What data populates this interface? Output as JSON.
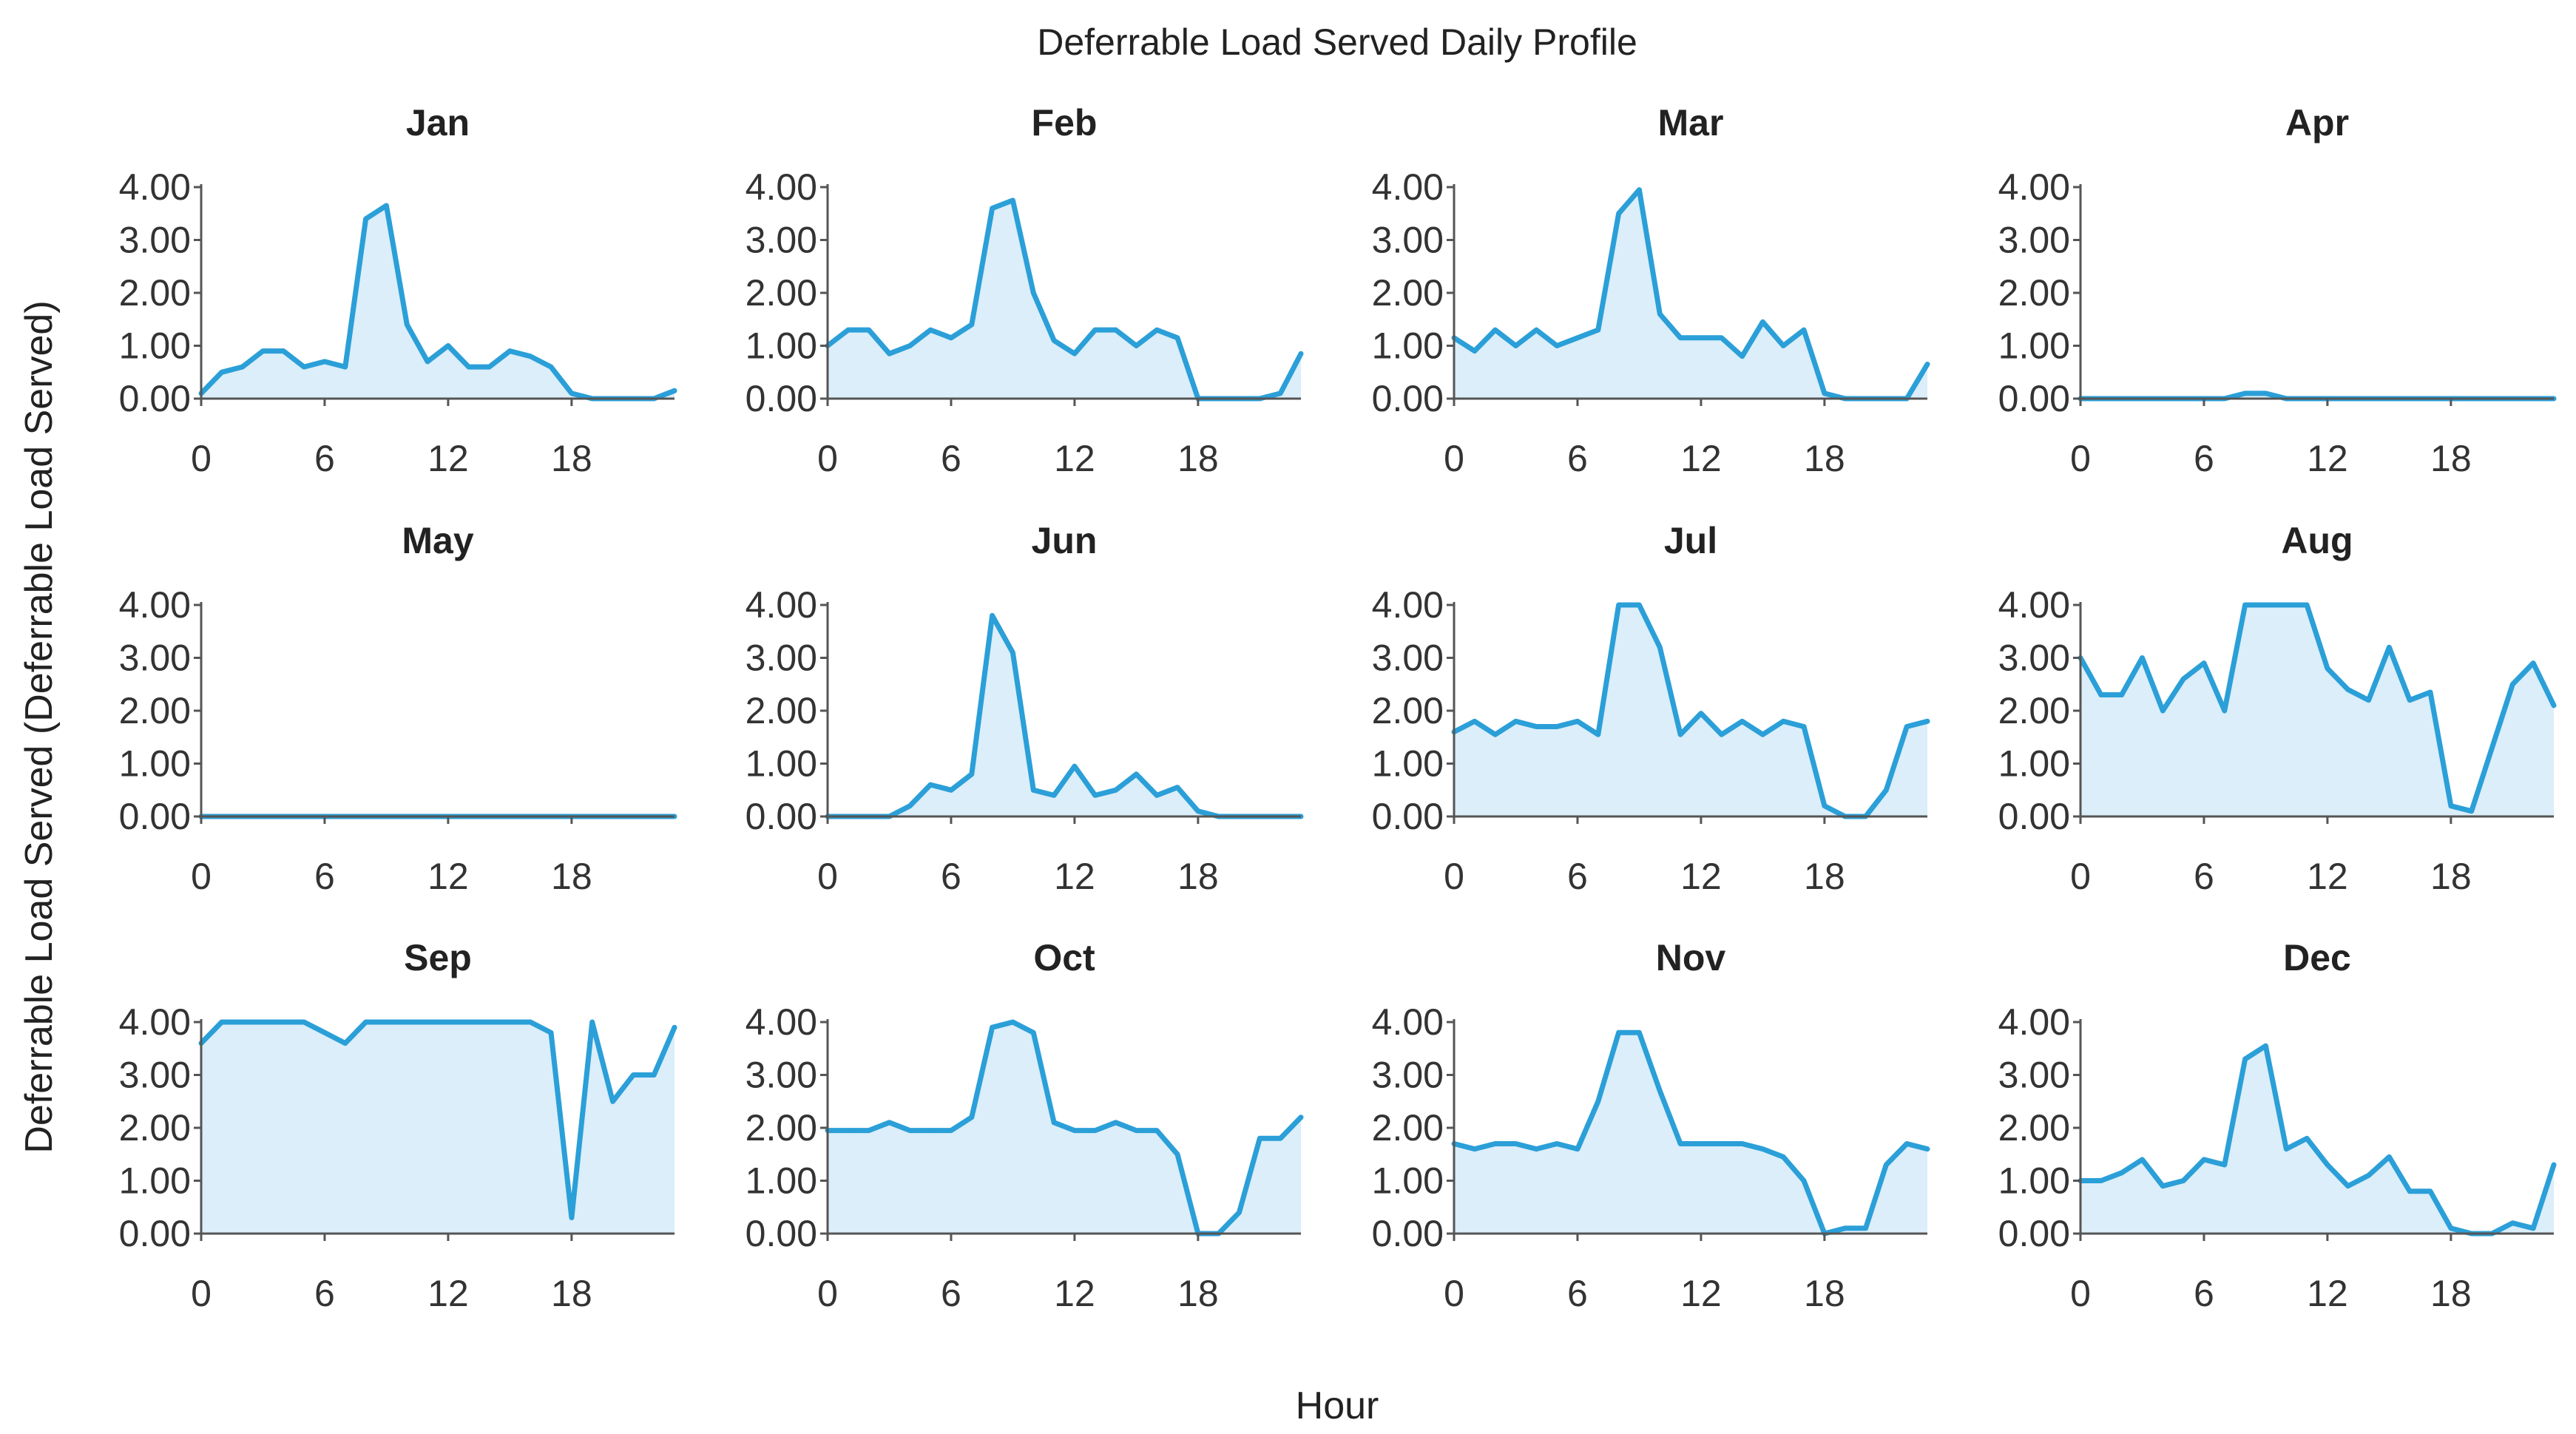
{
  "colors": {
    "line": "#2b9fd8",
    "fill": "#dbeef9"
  },
  "chart_data": {
    "type": "area",
    "title": "Deferrable Load Served Daily Profile",
    "xlabel": "Hour",
    "ylabel": "Deferrable Load Served (Deferrable Load Served)",
    "x": [
      0,
      1,
      2,
      3,
      4,
      5,
      6,
      7,
      8,
      9,
      10,
      11,
      12,
      13,
      14,
      15,
      16,
      17,
      18,
      19,
      20,
      21,
      22,
      23
    ],
    "xlim": [
      0,
      23
    ],
    "xticks": [
      0,
      6,
      12,
      18
    ],
    "ylim": [
      0,
      4
    ],
    "yticks": [
      0,
      1,
      2,
      3,
      4
    ],
    "ytick_labels": [
      "0.00",
      "1.00",
      "2.00",
      "3.00",
      "4.00"
    ],
    "grid": false,
    "panels": [
      {
        "name": "Jan",
        "values": [
          0.1,
          0.5,
          0.6,
          0.9,
          0.9,
          0.6,
          0.7,
          0.6,
          3.4,
          3.65,
          1.4,
          0.7,
          1.0,
          0.6,
          0.6,
          0.9,
          0.8,
          0.6,
          0.1,
          0.0,
          0.0,
          0.0,
          0.0,
          0.15
        ]
      },
      {
        "name": "Feb",
        "values": [
          1.0,
          1.3,
          1.3,
          0.85,
          1.0,
          1.3,
          1.15,
          1.4,
          3.6,
          3.75,
          2.0,
          1.1,
          0.85,
          1.3,
          1.3,
          1.0,
          1.3,
          1.15,
          0.0,
          0.0,
          0.0,
          0.0,
          0.1,
          0.85
        ]
      },
      {
        "name": "Mar",
        "values": [
          1.15,
          0.9,
          1.3,
          1.0,
          1.3,
          1.0,
          1.15,
          1.3,
          3.5,
          3.95,
          1.6,
          1.15,
          1.15,
          1.15,
          0.8,
          1.45,
          1.0,
          1.3,
          0.1,
          0.0,
          0.0,
          0.0,
          0.0,
          0.65
        ]
      },
      {
        "name": "Apr",
        "values": [
          0,
          0,
          0,
          0,
          0,
          0,
          0,
          0,
          0.1,
          0.1,
          0,
          0,
          0,
          0,
          0,
          0,
          0,
          0,
          0,
          0,
          0,
          0,
          0,
          0
        ]
      },
      {
        "name": "May",
        "values": [
          0,
          0,
          0,
          0,
          0,
          0,
          0,
          0,
          0,
          0,
          0,
          0,
          0,
          0,
          0,
          0,
          0,
          0,
          0,
          0,
          0,
          0,
          0,
          0
        ]
      },
      {
        "name": "Jun",
        "values": [
          0.0,
          0.0,
          0.0,
          0.0,
          0.2,
          0.6,
          0.5,
          0.8,
          3.8,
          3.1,
          0.5,
          0.4,
          0.95,
          0.4,
          0.5,
          0.8,
          0.4,
          0.55,
          0.1,
          0.0,
          0.0,
          0.0,
          0.0,
          0.0
        ]
      },
      {
        "name": "Jul",
        "values": [
          1.6,
          1.8,
          1.55,
          1.8,
          1.7,
          1.7,
          1.8,
          1.55,
          4.0,
          4.0,
          3.2,
          1.55,
          1.95,
          1.55,
          1.8,
          1.55,
          1.8,
          1.7,
          0.2,
          0.0,
          0.0,
          0.5,
          1.7,
          1.8
        ]
      },
      {
        "name": "Aug",
        "values": [
          3.0,
          2.3,
          2.3,
          3.0,
          2.0,
          2.6,
          2.9,
          2.0,
          4.0,
          4.0,
          4.0,
          4.0,
          2.8,
          2.4,
          2.2,
          3.2,
          2.2,
          2.35,
          0.2,
          0.1,
          1.3,
          2.5,
          2.9,
          2.1
        ]
      },
      {
        "name": "Sep",
        "values": [
          3.6,
          4.0,
          4.0,
          4.0,
          4.0,
          4.0,
          3.8,
          3.6,
          4.0,
          4.0,
          4.0,
          4.0,
          4.0,
          4.0,
          4.0,
          4.0,
          4.0,
          3.8,
          0.3,
          4.0,
          2.5,
          3.0,
          3.0,
          3.9
        ]
      },
      {
        "name": "Oct",
        "values": [
          1.95,
          1.95,
          1.95,
          2.1,
          1.95,
          1.95,
          1.95,
          2.2,
          3.9,
          4.0,
          3.8,
          2.1,
          1.95,
          1.95,
          2.1,
          1.95,
          1.95,
          1.5,
          0.0,
          0.0,
          0.4,
          1.8,
          1.8,
          2.2
        ]
      },
      {
        "name": "Nov",
        "values": [
          1.7,
          1.6,
          1.7,
          1.7,
          1.6,
          1.7,
          1.6,
          2.5,
          3.8,
          3.8,
          2.7,
          1.7,
          1.7,
          1.7,
          1.7,
          1.6,
          1.45,
          1.0,
          0.0,
          0.1,
          0.1,
          1.3,
          1.7,
          1.6
        ]
      },
      {
        "name": "Dec",
        "values": [
          1.0,
          1.0,
          1.15,
          1.4,
          0.9,
          1.0,
          1.4,
          1.3,
          3.3,
          3.55,
          1.6,
          1.8,
          1.3,
          0.9,
          1.1,
          1.45,
          0.8,
          0.8,
          0.1,
          0.0,
          0.0,
          0.2,
          0.1,
          1.3
        ]
      }
    ]
  }
}
